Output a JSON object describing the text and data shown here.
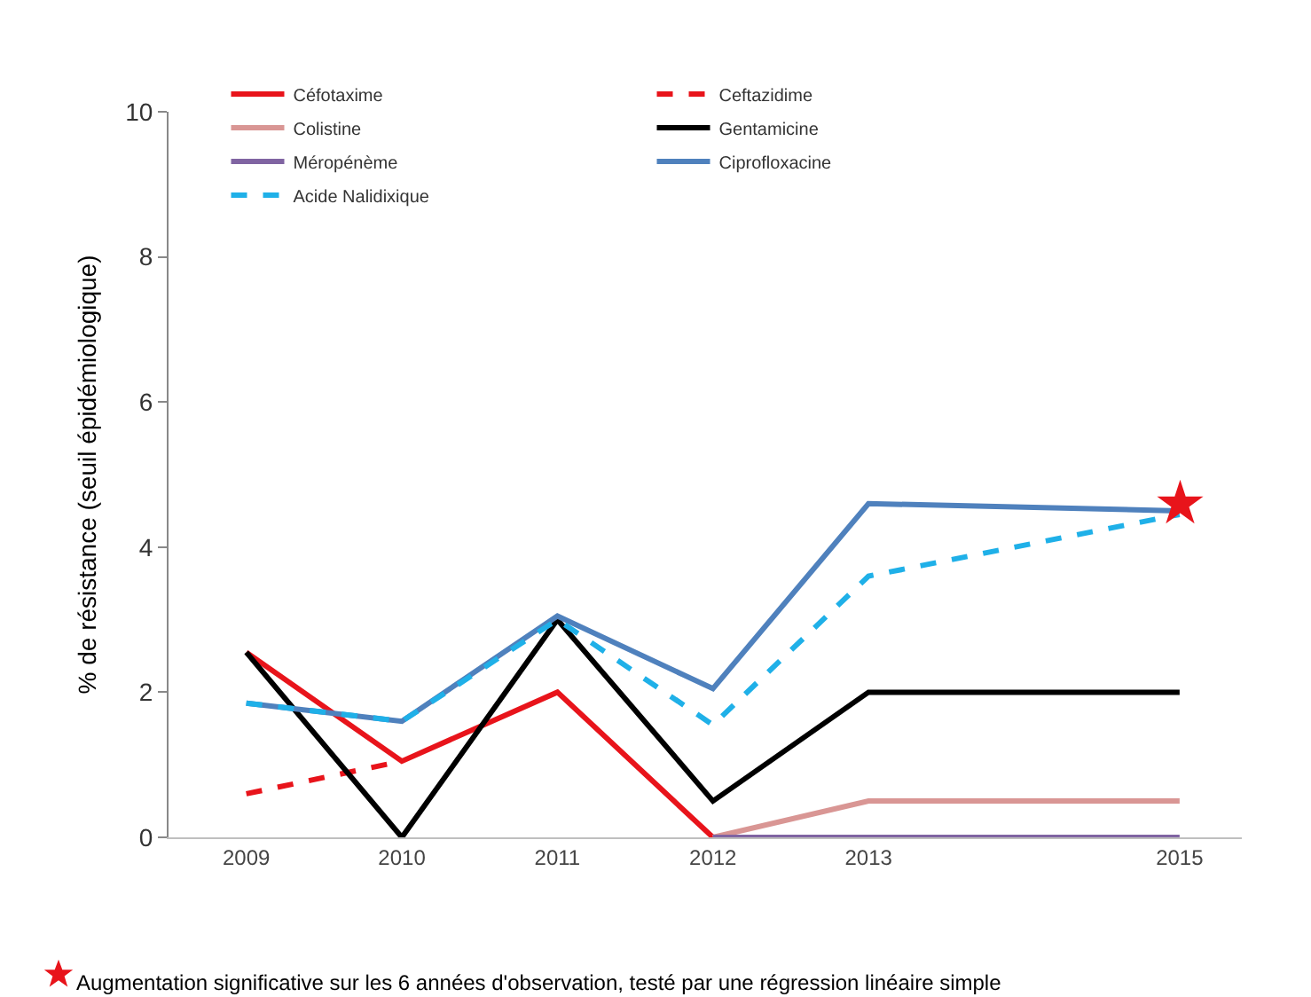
{
  "chart_data": {
    "type": "line",
    "ylabel": "% de résistance (seuil épidémiologique)",
    "x": [
      2009,
      2010,
      2011,
      2012,
      2013,
      2015
    ],
    "xlim": [
      2008.5,
      2015.4
    ],
    "xticks": [
      2009,
      2010,
      2011,
      2012,
      2013,
      2015
    ],
    "ylim": [
      0,
      10
    ],
    "yticks": [
      0,
      2,
      4,
      6,
      8,
      10
    ],
    "grid": false,
    "legend": "top",
    "marker": "none",
    "series": [
      {
        "name": "Céfotaxime",
        "color": "#e8141b",
        "line_style": "solid",
        "values": [
          2.55,
          1.05,
          2.0,
          0,
          null,
          null
        ]
      },
      {
        "name": "Ceftazidime",
        "color": "#e8141b",
        "line_style": "dashed",
        "values": [
          0.6,
          1.05,
          null,
          null,
          null,
          null
        ]
      },
      {
        "name": "Colistine",
        "color": "#d99694",
        "line_style": "solid",
        "values": [
          null,
          null,
          null,
          0,
          0.5,
          0.5
        ]
      },
      {
        "name": "Gentamicine",
        "color": "#000000",
        "line_style": "solid",
        "values": [
          2.55,
          0,
          3.0,
          0.5,
          2.0,
          2.0
        ]
      },
      {
        "name": "Méropénème",
        "color": "#8064a2",
        "line_style": "solid",
        "values": [
          null,
          null,
          null,
          0,
          0,
          0
        ]
      },
      {
        "name": "Ciprofloxacine",
        "color": "#4f81bd",
        "line_style": "solid",
        "values": [
          1.85,
          1.6,
          3.05,
          2.05,
          4.6,
          4.5
        ]
      },
      {
        "name": "Acide Nalidixique",
        "color": "#1fb0e8",
        "line_style": "dashed",
        "values": [
          1.85,
          1.6,
          3.0,
          1.55,
          3.6,
          4.45
        ]
      }
    ],
    "annotations": [
      {
        "text": "★",
        "x": 2015,
        "y": 4.6
      },
      "Augmentation significative sur les 6 années d'observation, testé par une régression linéaire simple"
    ]
  }
}
